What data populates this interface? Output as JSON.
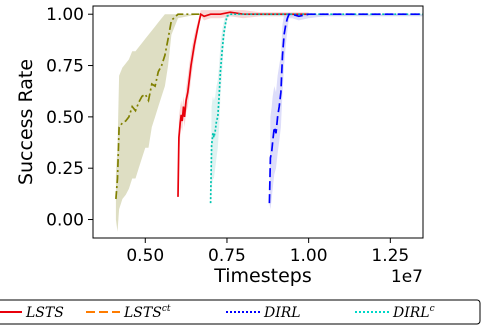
{
  "chart_data": {
    "type": "line",
    "xlabel": "Timesteps",
    "ylabel": "Success Rate",
    "x_offset_label": "1e7",
    "xlim": [
      0.34,
      1.35
    ],
    "ylim": [
      -0.09,
      1.04
    ],
    "xticks": [
      0.5,
      0.75,
      1.0,
      1.25
    ],
    "xtick_labels": [
      "0.50",
      "0.75",
      "1.00",
      "1.25"
    ],
    "yticks": [
      0.0,
      0.25,
      0.5,
      0.75,
      1.0
    ],
    "ytick_labels": [
      "0.00",
      "0.25",
      "0.50",
      "0.75",
      "1.00"
    ],
    "grid": false,
    "legend": {
      "placement": "bottom",
      "entries": [
        {
          "label": "LSTS",
          "sup": "",
          "color": "#e8000b",
          "style": "solid"
        },
        {
          "label": "LSTS",
          "sup": "ct",
          "color": "#ff7c00",
          "style": "dashed"
        },
        {
          "label": "DIRL",
          "sup": "",
          "color": "#0000ff",
          "style": "dotted"
        },
        {
          "label": "DIRL",
          "sup": "c",
          "color": "#00d7c8",
          "style": "dotted"
        }
      ]
    },
    "series": [
      {
        "name": "olive-dashdot",
        "color": "#808000",
        "band": "#b5b57a",
        "style": "dashdot",
        "x": [
          0.41,
          0.415,
          0.42,
          0.43,
          0.44,
          0.45,
          0.46,
          0.47,
          0.48,
          0.49,
          0.5,
          0.51,
          0.52,
          0.53,
          0.54,
          0.55,
          0.56,
          0.57,
          0.58,
          0.6,
          0.63,
          0.67
        ],
        "y": [
          0.1,
          0.2,
          0.45,
          0.47,
          0.48,
          0.5,
          0.55,
          0.53,
          0.57,
          0.6,
          0.61,
          0.58,
          0.66,
          0.65,
          0.72,
          0.75,
          0.8,
          0.88,
          0.97,
          1.0,
          1.0,
          1.0
        ],
        "lower": [
          0.0,
          -0.06,
          0.05,
          0.1,
          0.12,
          0.15,
          0.2,
          0.2,
          0.25,
          0.3,
          0.35,
          0.35,
          0.45,
          0.5,
          0.55,
          0.6,
          0.65,
          0.75,
          0.9,
          0.98,
          0.99,
          1.0
        ],
        "upper": [
          0.22,
          0.35,
          0.7,
          0.74,
          0.76,
          0.78,
          0.82,
          0.82,
          0.84,
          0.86,
          0.88,
          0.9,
          0.92,
          0.94,
          0.96,
          0.98,
          1.0,
          1.0,
          1.0,
          1.0,
          1.0,
          1.0
        ]
      },
      {
        "name": "red-solid",
        "color": "#e8000b",
        "band": "#f4a3a3",
        "style": "solid",
        "x": [
          0.6,
          0.603,
          0.607,
          0.61,
          0.613,
          0.617,
          0.62,
          0.625,
          0.63,
          0.64,
          0.65,
          0.66,
          0.67,
          0.68,
          0.7,
          0.73,
          0.76,
          0.8,
          0.85,
          0.9,
          0.95,
          1.0
        ],
        "y": [
          0.11,
          0.4,
          0.47,
          0.51,
          0.48,
          0.55,
          0.5,
          0.58,
          0.62,
          0.75,
          0.85,
          0.93,
          1.0,
          0.99,
          1.0,
          1.0,
          1.01,
          1.0,
          1.0,
          1.0,
          1.0,
          1.0
        ],
        "lower": [
          0.11,
          0.3,
          0.4,
          0.45,
          0.43,
          0.5,
          0.45,
          0.52,
          0.55,
          0.68,
          0.8,
          0.9,
          0.99,
          0.97,
          0.98,
          0.98,
          0.99,
          0.98,
          0.99,
          0.99,
          0.99,
          0.99
        ],
        "upper": [
          0.11,
          0.5,
          0.55,
          0.58,
          0.55,
          0.6,
          0.56,
          0.64,
          0.7,
          0.82,
          0.9,
          0.96,
          1.02,
          1.02,
          1.02,
          1.02,
          1.02,
          1.02,
          1.01,
          1.01,
          1.01,
          1.01
        ]
      },
      {
        "name": "teal-dotted",
        "color": "#00c4b0",
        "band": "#b6e3e0",
        "style": "dotted",
        "x": [
          0.7,
          0.703,
          0.707,
          0.71,
          0.714,
          0.718,
          0.722,
          0.726,
          0.73,
          0.735,
          0.74,
          0.745,
          0.75,
          0.76,
          0.78,
          0.82,
          0.9,
          1.0,
          1.1,
          1.2,
          1.3,
          1.35
        ],
        "y": [
          0.08,
          0.36,
          0.42,
          0.4,
          0.43,
          0.48,
          0.5,
          0.6,
          0.72,
          0.82,
          0.9,
          0.95,
          0.99,
          1.0,
          1.0,
          1.0,
          1.0,
          1.0,
          1.0,
          1.0,
          1.0,
          1.0
        ],
        "lower": [
          0.08,
          0.15,
          0.2,
          0.2,
          0.25,
          0.3,
          0.35,
          0.45,
          0.6,
          0.72,
          0.85,
          0.92,
          0.98,
          0.99,
          0.99,
          0.99,
          0.99,
          0.99,
          0.99,
          0.99,
          0.99,
          0.99
        ],
        "upper": [
          0.08,
          0.55,
          0.6,
          0.58,
          0.6,
          0.65,
          0.68,
          0.75,
          0.85,
          0.92,
          0.96,
          0.99,
          1.0,
          1.0,
          1.0,
          1.0,
          1.0,
          1.0,
          1.0,
          1.0,
          1.0,
          1.0
        ]
      },
      {
        "name": "blue-dashed",
        "color": "#0000ff",
        "band": "#b3b3f5",
        "style": "dashed",
        "x": [
          0.88,
          0.883,
          0.887,
          0.89,
          0.895,
          0.9,
          0.905,
          0.91,
          0.915,
          0.92,
          0.925,
          0.93,
          0.935,
          0.94,
          0.95,
          0.97,
          1.0,
          1.05,
          1.1,
          1.2,
          1.3,
          1.35
        ],
        "y": [
          0.08,
          0.3,
          0.33,
          0.38,
          0.45,
          0.42,
          0.5,
          0.55,
          0.62,
          0.8,
          0.9,
          0.95,
          0.98,
          1.0,
          1.0,
          0.99,
          1.0,
          1.0,
          1.0,
          1.0,
          1.0,
          1.0
        ],
        "lower": [
          0.08,
          0.05,
          0.1,
          0.15,
          0.22,
          0.25,
          0.32,
          0.38,
          0.45,
          0.62,
          0.75,
          0.85,
          0.92,
          0.98,
          0.98,
          0.97,
          0.98,
          0.99,
          0.99,
          0.99,
          0.99,
          0.99
        ],
        "upper": [
          0.08,
          0.5,
          0.55,
          0.6,
          0.65,
          0.62,
          0.7,
          0.75,
          0.8,
          0.95,
          1.0,
          1.0,
          1.0,
          1.0,
          1.0,
          1.0,
          1.0,
          1.0,
          1.0,
          1.0,
          1.0,
          1.0
        ]
      }
    ]
  }
}
